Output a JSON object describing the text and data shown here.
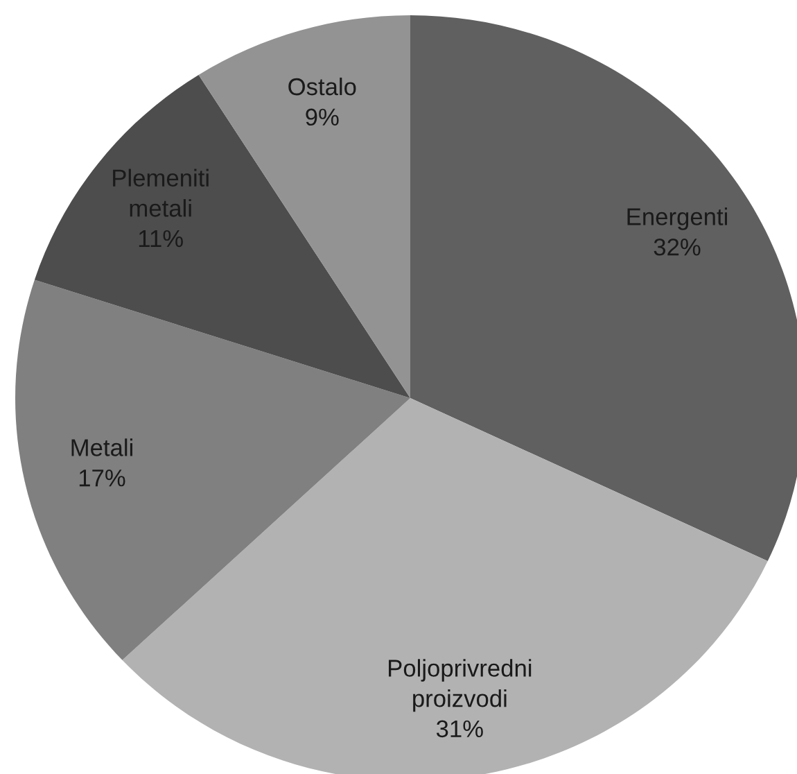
{
  "chart_data": {
    "type": "pie",
    "categories": [
      "Energenti",
      "Poljoprivredni proizvodi",
      "Metali",
      "Plemeniti metali",
      "Ostalo"
    ],
    "values": [
      32,
      31,
      17,
      11,
      9
    ],
    "colors": [
      "#606060",
      "#b2b2b2",
      "#808080",
      "#4d4d4d",
      "#939393"
    ],
    "value_labels": [
      "32%",
      "31%",
      "17%",
      "11%",
      "9%"
    ]
  }
}
